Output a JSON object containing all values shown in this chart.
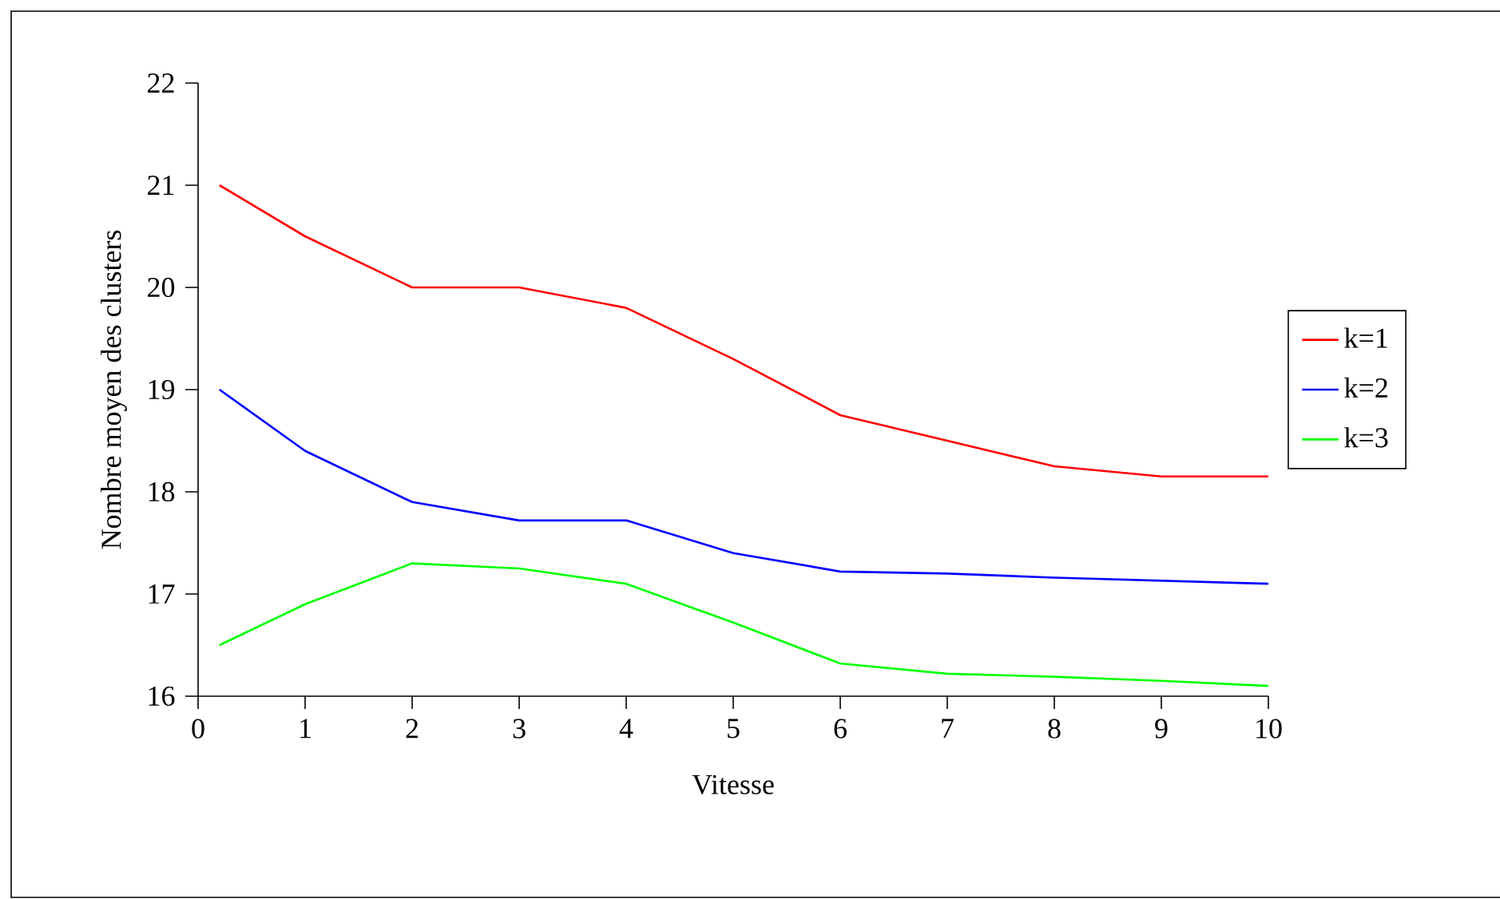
{
  "chart_data": {
    "type": "line",
    "xlabel": "Vitesse",
    "ylabel": "Nombre moyen des clusters",
    "x": [
      0.2,
      1,
      2,
      3,
      4,
      5,
      6,
      7,
      8,
      9,
      10
    ],
    "series": [
      {
        "name": "k=1",
        "color": "#ff0000",
        "values": [
          21,
          20.5,
          20,
          20,
          19.8,
          19.3,
          18.75,
          18.5,
          18.25,
          18.15,
          18.15
        ]
      },
      {
        "name": "k=2",
        "color": "#0000ff",
        "values": [
          19,
          18.4,
          17.9,
          17.72,
          17.72,
          17.4,
          17.22,
          17.2,
          17.16,
          17.13,
          17.1
        ]
      },
      {
        "name": "k=3",
        "color": "#00ff00",
        "values": [
          16.5,
          16.9,
          17.3,
          17.25,
          17.1,
          16.72,
          16.32,
          16.22,
          16.19,
          16.15,
          16.1
        ]
      }
    ],
    "xlim": [
      0,
      10
    ],
    "xticks": [
      0,
      1,
      2,
      3,
      4,
      5,
      6,
      7,
      8,
      9,
      10
    ],
    "ylim": [
      16,
      22
    ],
    "yticks": [
      16,
      17,
      18,
      19,
      20,
      21,
      22
    ],
    "grid": false,
    "legend": "right",
    "marker": "none",
    "line_style": "solid"
  }
}
